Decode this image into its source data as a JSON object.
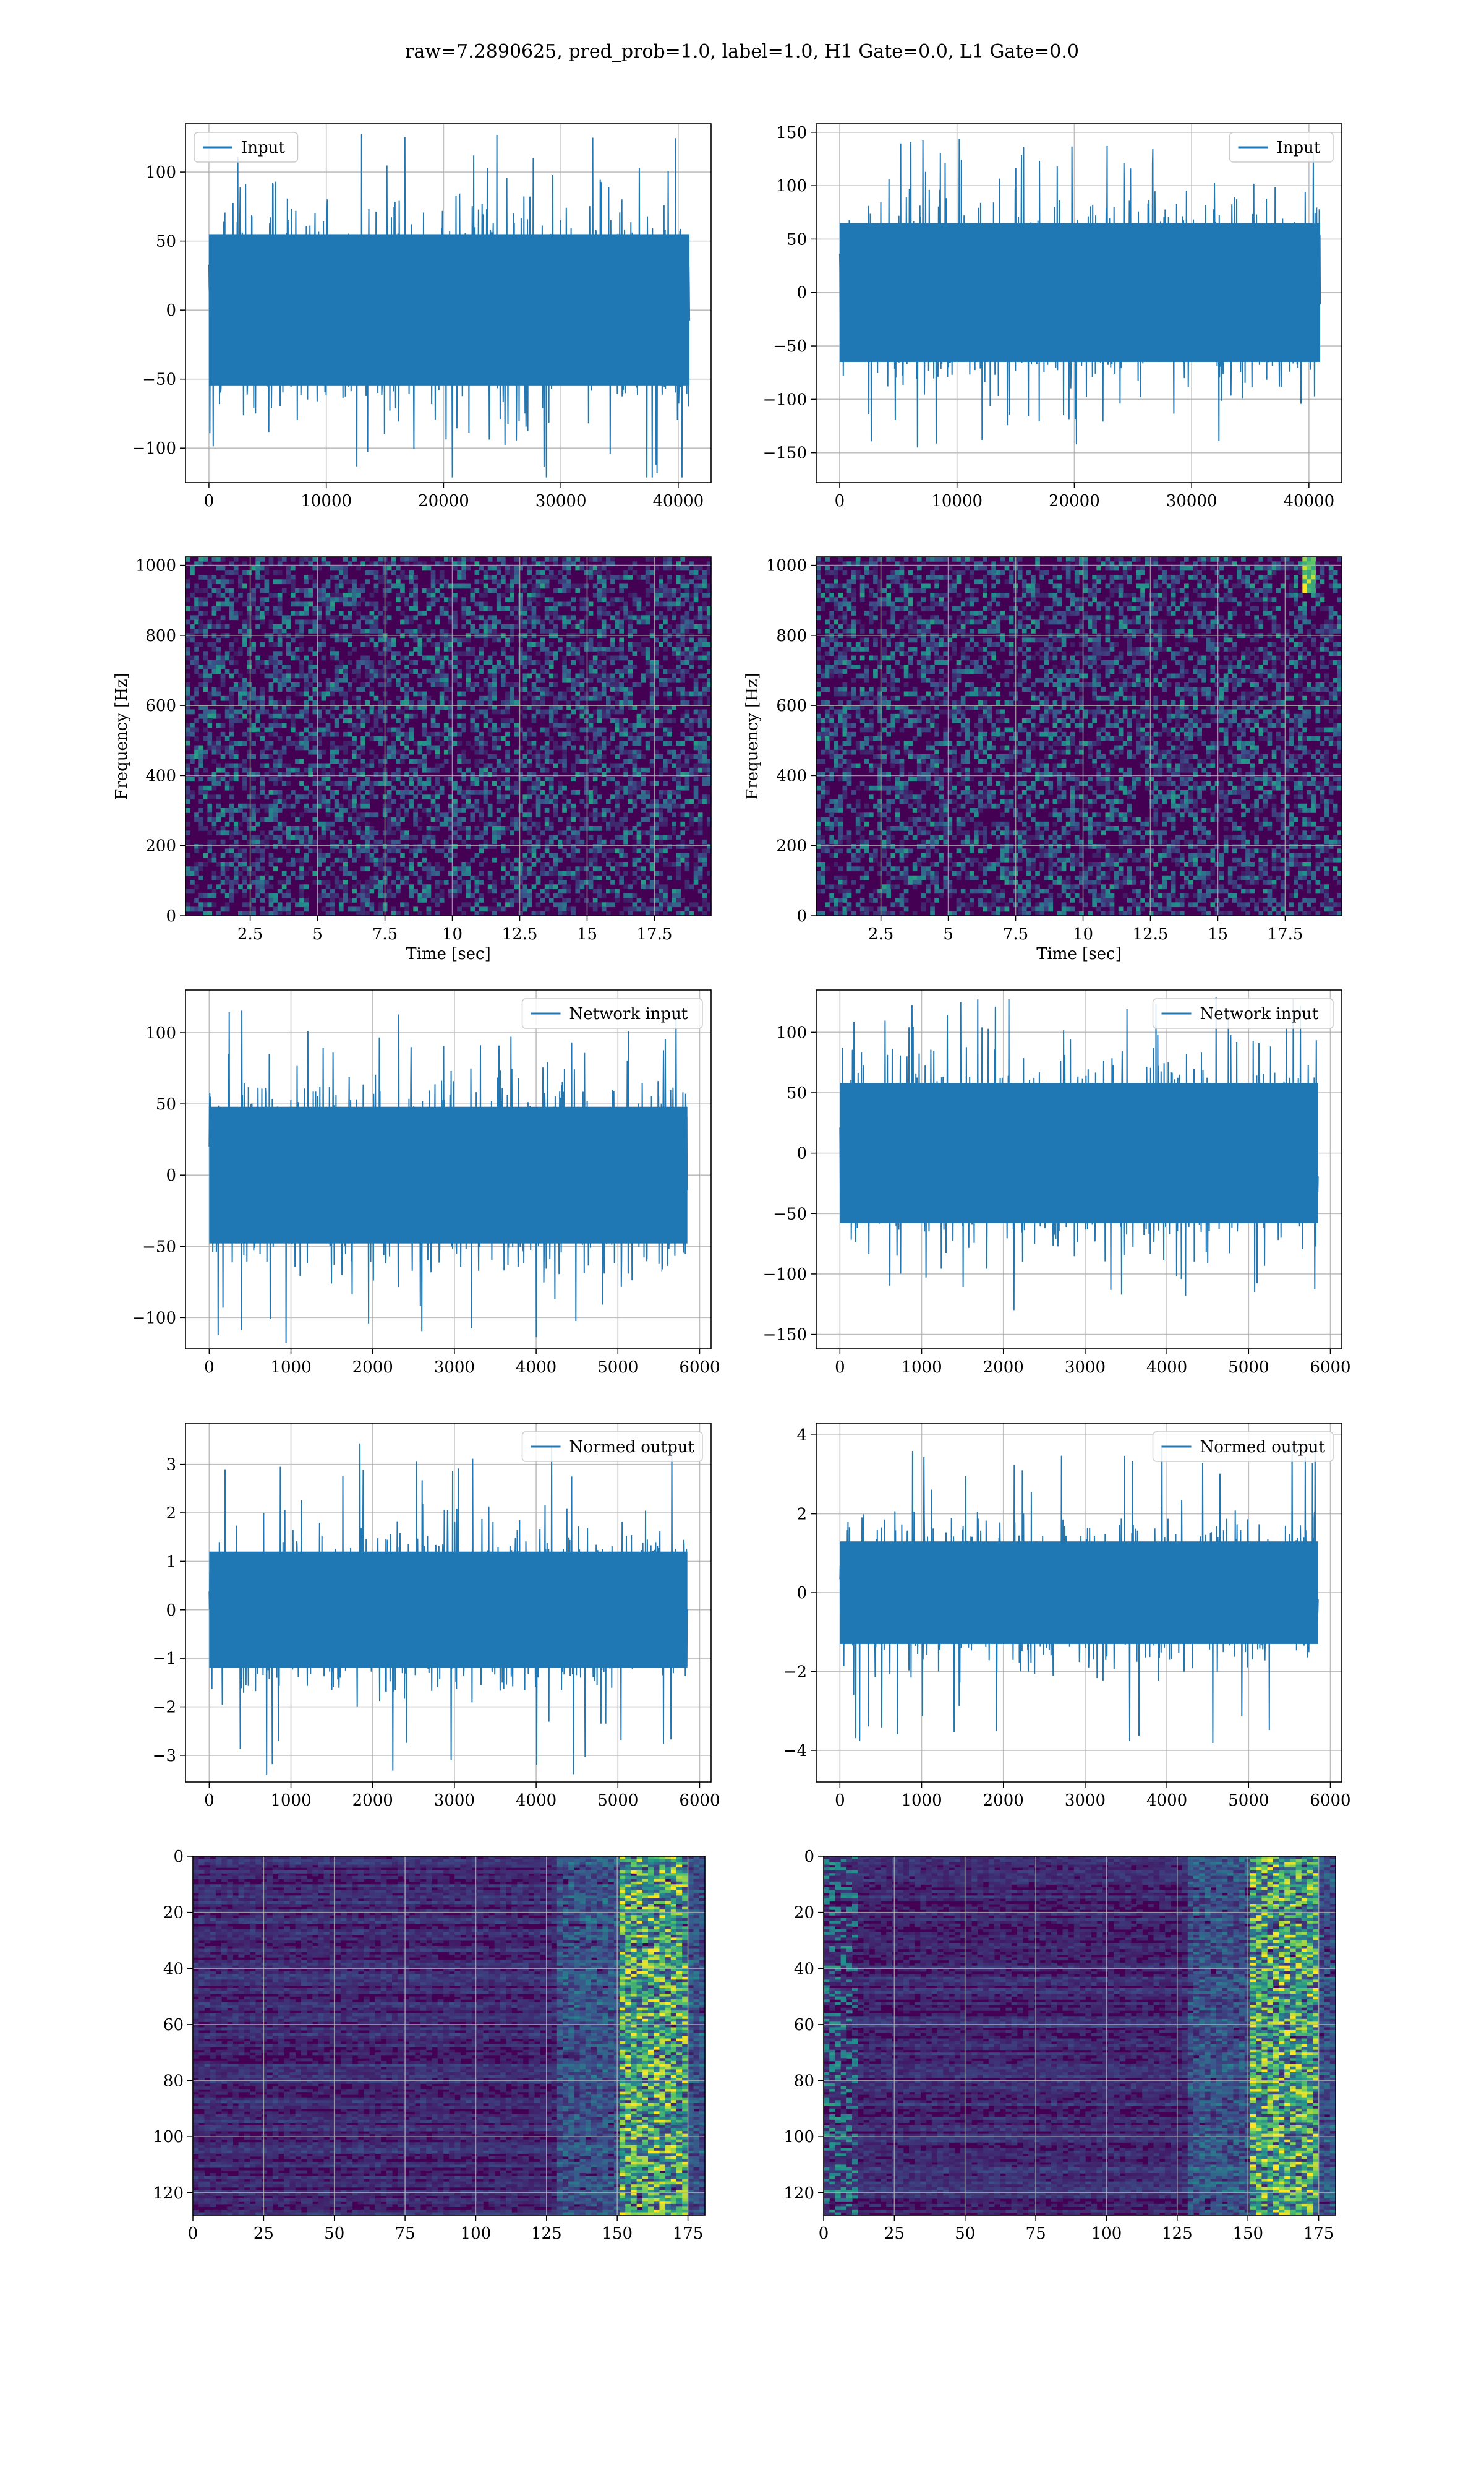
{
  "figure": {
    "title": "raw=7.2890625, pred_prob=1.0, label=1.0, H1 Gate=0.0, L1 Gate=0.0"
  },
  "colors": {
    "line": "#1f77b4",
    "viridis_low": "#440154",
    "viridis_mid": "#21918c",
    "viridis_high": "#fde725",
    "grid": "#b0b0b0"
  },
  "chart_data": [
    {
      "id": "input-h1",
      "type": "line",
      "legend": "Input",
      "legend_loc": "upper-left",
      "xlim": [
        -2000,
        42800
      ],
      "ylim": [
        -125,
        135
      ],
      "xticks": [
        0,
        10000,
        20000,
        30000,
        40000
      ],
      "yticks": [
        -100,
        -50,
        0,
        50,
        100
      ],
      "x_range": [
        0,
        40960
      ],
      "amplitude": 55,
      "peak": 128,
      "xlabel": "",
      "ylabel": ""
    },
    {
      "id": "input-l1",
      "type": "line",
      "legend": "Input",
      "legend_loc": "upper-right",
      "xlim": [
        -2000,
        42800
      ],
      "ylim": [
        -178,
        158
      ],
      "xticks": [
        0,
        10000,
        20000,
        30000,
        40000
      ],
      "yticks": [
        -150,
        -100,
        -50,
        0,
        50,
        100,
        150
      ],
      "x_range": [
        0,
        40960
      ],
      "amplitude": 65,
      "peak": 150,
      "xlabel": "",
      "ylabel": ""
    },
    {
      "id": "spec-h1",
      "type": "heatmap",
      "xlim": [
        0.1,
        19.6
      ],
      "ylim": [
        0,
        1024
      ],
      "xticks": [
        2.5,
        5.0,
        7.5,
        10.0,
        12.5,
        15.0,
        17.5
      ],
      "yticks": [
        0,
        200,
        400,
        600,
        800,
        1000
      ],
      "xlabel": "Time [sec]",
      "ylabel": "Frequency [Hz]"
    },
    {
      "id": "spec-l1",
      "type": "heatmap",
      "xlim": [
        0.1,
        19.6
      ],
      "ylim": [
        0,
        1024
      ],
      "xticks": [
        2.5,
        5.0,
        7.5,
        10.0,
        12.5,
        15.0,
        17.5
      ],
      "yticks": [
        0,
        200,
        400,
        600,
        800,
        1000
      ],
      "xlabel": "Time [sec]",
      "ylabel": "Frequency [Hz]"
    },
    {
      "id": "net-h1",
      "type": "line",
      "legend": "Network input",
      "legend_loc": "upper-right",
      "xlim": [
        -290,
        6140
      ],
      "ylim": [
        -122,
        130
      ],
      "xticks": [
        0,
        1000,
        2000,
        3000,
        4000,
        5000,
        6000
      ],
      "yticks": [
        -100,
        -50,
        0,
        50,
        100
      ],
      "x_range": [
        0,
        5850
      ],
      "amplitude": 48,
      "peak": 120,
      "xlabel": "",
      "ylabel": ""
    },
    {
      "id": "net-l1",
      "type": "line",
      "legend": "Network input",
      "legend_loc": "upper-right",
      "xlim": [
        -290,
        6140
      ],
      "ylim": [
        -162,
        135
      ],
      "xticks": [
        0,
        1000,
        2000,
        3000,
        4000,
        5000,
        6000
      ],
      "yticks": [
        -150,
        -100,
        -50,
        0,
        50,
        100
      ],
      "x_range": [
        0,
        5850
      ],
      "amplitude": 58,
      "peak": 130,
      "xlabel": "",
      "ylabel": ""
    },
    {
      "id": "norm-h1",
      "type": "line",
      "legend": "Normed output",
      "legend_loc": "upper-right",
      "xlim": [
        -290,
        6140
      ],
      "ylim": [
        -3.55,
        3.85
      ],
      "xticks": [
        0,
        1000,
        2000,
        3000,
        4000,
        5000,
        6000
      ],
      "yticks": [
        -3,
        -2,
        -1,
        0,
        1,
        2,
        3
      ],
      "x_range": [
        0,
        5850
      ],
      "amplitude": 1.2,
      "peak": 3.5,
      "xlabel": "",
      "ylabel": ""
    },
    {
      "id": "norm-l1",
      "type": "line",
      "legend": "Normed output",
      "legend_loc": "upper-right",
      "xlim": [
        -290,
        6140
      ],
      "ylim": [
        -4.8,
        4.3
      ],
      "xticks": [
        0,
        1000,
        2000,
        3000,
        4000,
        5000,
        6000
      ],
      "yticks": [
        -4,
        -2,
        0,
        2,
        4
      ],
      "x_range": [
        0,
        5850
      ],
      "amplitude": 1.3,
      "peak": 4.0,
      "xlabel": "",
      "ylabel": ""
    },
    {
      "id": "feat-h1",
      "type": "heatmap",
      "xlim": [
        0,
        181
      ],
      "ylim": [
        128,
        0
      ],
      "xticks": [
        0,
        25,
        50,
        75,
        100,
        125,
        150,
        175
      ],
      "yticks": [
        0,
        20,
        40,
        60,
        80,
        100,
        120
      ],
      "xlabel": "",
      "ylabel": ""
    },
    {
      "id": "feat-l1",
      "type": "heatmap",
      "xlim": [
        0,
        181
      ],
      "ylim": [
        128,
        0
      ],
      "xticks": [
        0,
        25,
        50,
        75,
        100,
        125,
        150,
        175
      ],
      "yticks": [
        0,
        20,
        40,
        60,
        80,
        100,
        120
      ],
      "xlabel": "",
      "ylabel": ""
    }
  ]
}
